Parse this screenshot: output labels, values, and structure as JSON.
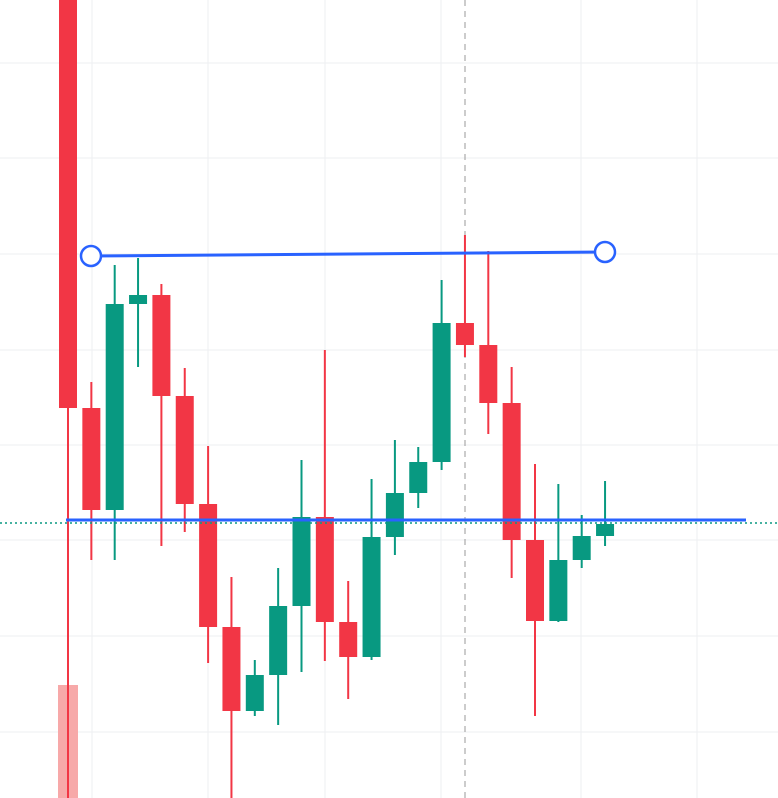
{
  "chart_data": {
    "type": "candlestick",
    "categories": [
      null,
      null,
      null,
      null,
      null,
      null,
      null,
      null,
      null,
      null,
      null,
      null,
      null,
      null,
      null,
      null,
      null,
      null,
      null,
      null,
      null,
      null,
      null,
      null
    ],
    "open": [
      798,
      390,
      288,
      494,
      503,
      402,
      294,
      171,
      87,
      123,
      192,
      281,
      176,
      141,
      261,
      305,
      336,
      475,
      453,
      395,
      258,
      177,
      238,
      262
    ],
    "high": [
      798,
      416,
      533,
      540,
      514,
      430,
      352,
      221,
      138,
      230,
      338,
      448,
      217,
      319,
      358,
      351,
      518,
      563,
      547,
      431,
      334,
      314,
      283,
      317
    ],
    "low": [
      0,
      238,
      238,
      431,
      252,
      266,
      135,
      0,
      82,
      73,
      126,
      137,
      99,
      138,
      243,
      290,
      328,
      441,
      364,
      220,
      82,
      176,
      230,
      252
    ],
    "close": [
      390,
      288,
      494,
      503,
      402,
      294,
      171,
      87,
      123,
      192,
      281,
      176,
      141,
      261,
      305,
      336,
      475,
      453,
      395,
      258,
      177,
      238,
      262,
      274
    ],
    "up_color": "#089981",
    "down_color": "#f23645",
    "ylim": [
      0,
      798
    ]
  }
}
